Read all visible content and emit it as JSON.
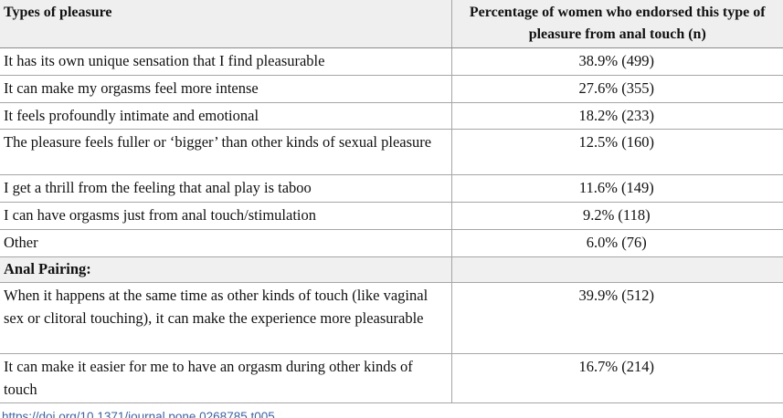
{
  "table": {
    "header": {
      "col1": "Types of pleasure",
      "col2": "Percentage of women who endorsed this type of pleasure from anal touch (n)"
    },
    "rows": [
      {
        "label": "It has its own unique sensation that I find pleasurable",
        "value": "38.9% (499)"
      },
      {
        "label": "It can make my orgasms feel more intense",
        "value": "27.6% (355)"
      },
      {
        "label": "It feels profoundly intimate and emotional",
        "value": "18.2% (233)"
      },
      {
        "label": "The pleasure feels fuller or ‘bigger’ than other kinds of sexual pleasure",
        "value": "12.5% (160)"
      },
      {
        "label": "I get a thrill from the feeling that anal play is taboo",
        "value": "11.6% (149)"
      },
      {
        "label": "I can have orgasms just from anal touch/stimulation",
        "value": "9.2% (118)"
      },
      {
        "label": "Other",
        "value": "6.0% (76)"
      },
      {
        "label": "Anal Pairing:",
        "value": ""
      },
      {
        "label": "When it happens at the same time as other kinds of touch (like vaginal sex or clitoral touching), it can make the experience more pleasurable",
        "value": "39.9% (512)"
      },
      {
        "label": "It can make it easier for me to have an orgasm during other kinds of touch",
        "value": "16.7% (214)"
      }
    ]
  },
  "footer": {
    "doi_link": "https://doi.org/10.1371/journal.pone.0268785.t005"
  },
  "colors": {
    "header_bg": "#efefef",
    "section_bg": "#f0f0f0",
    "border": "#a6a6a6",
    "link": "#3c63ad",
    "rule": "#5b6f93"
  }
}
